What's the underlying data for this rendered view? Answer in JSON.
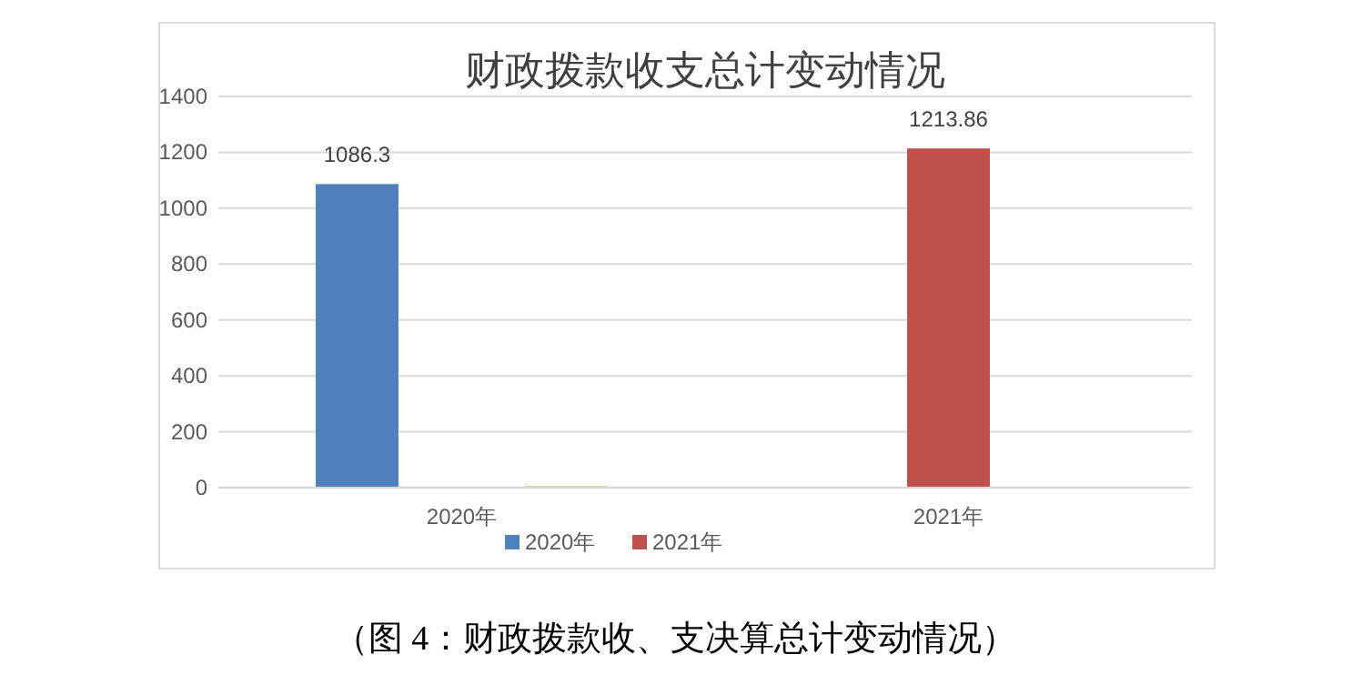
{
  "chart_data": {
    "type": "bar",
    "title": "财政拨款收支总计变动情况",
    "categories": [
      "2020年",
      "2021年"
    ],
    "series": [
      {
        "name": "2020年",
        "color": "#4f81bd",
        "values": [
          1086.3,
          null
        ],
        "value_labels": [
          "1086.3",
          null
        ]
      },
      {
        "name": "2021年",
        "color": "#c0504d",
        "values": [
          null,
          1213.86
        ],
        "value_labels": [
          null,
          "1213.86"
        ]
      },
      {
        "color": "#9bbb59",
        "values": [
          5,
          null
        ]
      }
    ],
    "ylim": [
      0,
      1400
    ],
    "yticks": [
      0,
      200,
      400,
      600,
      800,
      1000,
      1200,
      1400
    ],
    "grid": "y",
    "legend": "bottom",
    "annotations": [
      "（图 4：财政拨款收、支决算总计变动情况）"
    ]
  }
}
